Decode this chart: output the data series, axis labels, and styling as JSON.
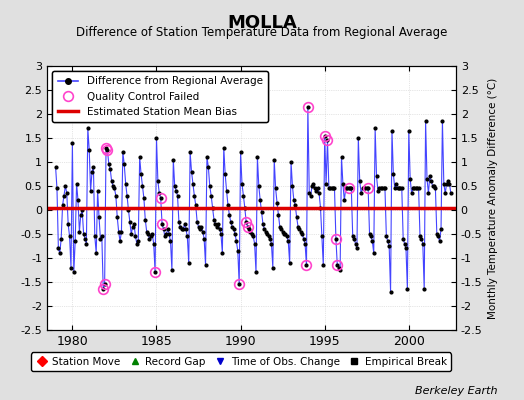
{
  "title": "MOLLA",
  "subtitle": "Difference of Station Temperature Data from Regional Average",
  "ylabel_right": "Monthly Temperature Anomaly Difference (°C)",
  "bias": 0.05,
  "ylim": [
    -2.5,
    3.0
  ],
  "xlim": [
    1978.5,
    2002.8
  ],
  "xticks": [
    1980,
    1985,
    1990,
    1995,
    2000
  ],
  "yticks": [
    -2.5,
    -2,
    -1.5,
    -1,
    -0.5,
    0,
    0.5,
    1,
    1.5,
    2,
    2.5,
    3
  ],
  "line_color": "#4444ff",
  "marker_color": "#000000",
  "bias_color": "#dd0000",
  "qc_color": "#ff44cc",
  "bg_fig": "#e0e0e0",
  "bg_ax": "#ffffff",
  "grid_color": "#cccccc",
  "watermark": "Berkeley Earth",
  "data": [
    [
      1979.0,
      0.9
    ],
    [
      1979.083,
      0.45
    ],
    [
      1979.167,
      -0.8
    ],
    [
      1979.25,
      -0.9
    ],
    [
      1979.333,
      -0.6
    ],
    [
      1979.417,
      0.1
    ],
    [
      1979.5,
      0.3
    ],
    [
      1979.583,
      0.5
    ],
    [
      1979.667,
      0.35
    ],
    [
      1979.75,
      -0.3
    ],
    [
      1979.833,
      -0.55
    ],
    [
      1979.917,
      -1.2
    ],
    [
      1980.0,
      1.4
    ],
    [
      1980.083,
      -1.3
    ],
    [
      1980.167,
      -0.65
    ],
    [
      1980.25,
      0.55
    ],
    [
      1980.333,
      0.2
    ],
    [
      1980.417,
      -0.45
    ],
    [
      1980.5,
      -0.1
    ],
    [
      1980.583,
      0.0
    ],
    [
      1980.667,
      -0.5
    ],
    [
      1980.75,
      -0.6
    ],
    [
      1980.833,
      -0.7
    ],
    [
      1980.917,
      1.7
    ],
    [
      1981.0,
      1.25
    ],
    [
      1981.083,
      0.4
    ],
    [
      1981.167,
      0.8
    ],
    [
      1981.25,
      0.9
    ],
    [
      1981.333,
      -0.55
    ],
    [
      1981.417,
      -0.9
    ],
    [
      1981.5,
      0.4
    ],
    [
      1981.583,
      -0.15
    ],
    [
      1981.667,
      -0.6
    ],
    [
      1981.75,
      -0.55
    ],
    [
      1981.833,
      -1.65
    ],
    [
      1981.917,
      -1.55
    ],
    [
      1982.0,
      1.3
    ],
    [
      1982.083,
      1.25
    ],
    [
      1982.167,
      0.95
    ],
    [
      1982.25,
      0.85
    ],
    [
      1982.333,
      0.6
    ],
    [
      1982.417,
      0.5
    ],
    [
      1982.5,
      0.45
    ],
    [
      1982.583,
      0.3
    ],
    [
      1982.667,
      -0.15
    ],
    [
      1982.75,
      -0.45
    ],
    [
      1982.833,
      -0.65
    ],
    [
      1982.917,
      -0.45
    ],
    [
      1983.0,
      1.2
    ],
    [
      1983.083,
      0.95
    ],
    [
      1983.167,
      0.55
    ],
    [
      1983.25,
      0.3
    ],
    [
      1983.333,
      0.0
    ],
    [
      1983.417,
      -0.25
    ],
    [
      1983.5,
      -0.5
    ],
    [
      1983.583,
      -0.35
    ],
    [
      1983.667,
      -0.3
    ],
    [
      1983.75,
      -0.55
    ],
    [
      1983.833,
      -0.7
    ],
    [
      1983.917,
      -0.65
    ],
    [
      1984.0,
      1.1
    ],
    [
      1984.083,
      0.75
    ],
    [
      1984.167,
      0.5
    ],
    [
      1984.25,
      0.25
    ],
    [
      1984.333,
      -0.2
    ],
    [
      1984.417,
      -0.45
    ],
    [
      1984.5,
      -0.5
    ],
    [
      1984.583,
      -0.6
    ],
    [
      1984.667,
      -0.55
    ],
    [
      1984.75,
      -0.5
    ],
    [
      1984.833,
      -0.7
    ],
    [
      1984.917,
      -1.3
    ],
    [
      1985.0,
      1.5
    ],
    [
      1985.083,
      0.6
    ],
    [
      1985.167,
      0.35
    ],
    [
      1985.25,
      0.25
    ],
    [
      1985.333,
      -0.3
    ],
    [
      1985.417,
      -0.4
    ],
    [
      1985.5,
      -0.55
    ],
    [
      1985.583,
      -0.5
    ],
    [
      1985.667,
      -0.4
    ],
    [
      1985.75,
      -0.5
    ],
    [
      1985.833,
      -0.65
    ],
    [
      1985.917,
      -1.25
    ],
    [
      1986.0,
      1.05
    ],
    [
      1986.083,
      0.5
    ],
    [
      1986.167,
      0.4
    ],
    [
      1986.25,
      0.3
    ],
    [
      1986.333,
      -0.25
    ],
    [
      1986.417,
      -0.35
    ],
    [
      1986.5,
      -0.4
    ],
    [
      1986.583,
      -0.4
    ],
    [
      1986.667,
      -0.3
    ],
    [
      1986.75,
      -0.4
    ],
    [
      1986.833,
      -0.55
    ],
    [
      1986.917,
      -1.1
    ],
    [
      1987.0,
      1.2
    ],
    [
      1987.083,
      0.8
    ],
    [
      1987.167,
      0.55
    ],
    [
      1987.25,
      0.3
    ],
    [
      1987.333,
      0.1
    ],
    [
      1987.417,
      -0.25
    ],
    [
      1987.5,
      -0.35
    ],
    [
      1987.583,
      -0.4
    ],
    [
      1987.667,
      -0.35
    ],
    [
      1987.75,
      -0.45
    ],
    [
      1987.833,
      -0.6
    ],
    [
      1987.917,
      -1.15
    ],
    [
      1988.0,
      1.1
    ],
    [
      1988.083,
      0.9
    ],
    [
      1988.167,
      0.5
    ],
    [
      1988.25,
      0.3
    ],
    [
      1988.333,
      0.05
    ],
    [
      1988.417,
      -0.2
    ],
    [
      1988.5,
      -0.3
    ],
    [
      1988.583,
      -0.35
    ],
    [
      1988.667,
      -0.3
    ],
    [
      1988.75,
      -0.4
    ],
    [
      1988.833,
      -0.5
    ],
    [
      1988.917,
      -0.9
    ],
    [
      1989.0,
      1.3
    ],
    [
      1989.083,
      0.75
    ],
    [
      1989.167,
      0.4
    ],
    [
      1989.25,
      0.1
    ],
    [
      1989.333,
      -0.1
    ],
    [
      1989.417,
      -0.25
    ],
    [
      1989.5,
      -0.35
    ],
    [
      1989.583,
      -0.4
    ],
    [
      1989.667,
      -0.5
    ],
    [
      1989.75,
      -0.65
    ],
    [
      1989.833,
      -0.85
    ],
    [
      1989.917,
      -1.55
    ],
    [
      1990.0,
      1.2
    ],
    [
      1990.083,
      0.55
    ],
    [
      1990.167,
      0.3
    ],
    [
      1990.25,
      0.05
    ],
    [
      1990.333,
      -0.25
    ],
    [
      1990.417,
      -0.35
    ],
    [
      1990.5,
      -0.4
    ],
    [
      1990.583,
      -0.45
    ],
    [
      1990.667,
      -0.5
    ],
    [
      1990.75,
      -0.55
    ],
    [
      1990.833,
      -0.7
    ],
    [
      1990.917,
      -1.3
    ],
    [
      1991.0,
      1.1
    ],
    [
      1991.083,
      0.5
    ],
    [
      1991.167,
      0.2
    ],
    [
      1991.25,
      -0.05
    ],
    [
      1991.333,
      -0.3
    ],
    [
      1991.417,
      -0.4
    ],
    [
      1991.5,
      -0.45
    ],
    [
      1991.583,
      -0.5
    ],
    [
      1991.667,
      -0.55
    ],
    [
      1991.75,
      -0.6
    ],
    [
      1991.833,
      -0.7
    ],
    [
      1991.917,
      -1.2
    ],
    [
      1992.0,
      1.05
    ],
    [
      1992.083,
      0.45
    ],
    [
      1992.167,
      0.15
    ],
    [
      1992.25,
      -0.1
    ],
    [
      1992.333,
      -0.35
    ],
    [
      1992.417,
      -0.4
    ],
    [
      1992.5,
      -0.45
    ],
    [
      1992.583,
      -0.5
    ],
    [
      1992.667,
      -0.5
    ],
    [
      1992.75,
      -0.55
    ],
    [
      1992.833,
      -0.65
    ],
    [
      1992.917,
      -1.1
    ],
    [
      1993.0,
      1.0
    ],
    [
      1993.083,
      0.5
    ],
    [
      1993.167,
      0.2
    ],
    [
      1993.25,
      0.1
    ],
    [
      1993.333,
      -0.15
    ],
    [
      1993.417,
      -0.35
    ],
    [
      1993.5,
      -0.4
    ],
    [
      1993.583,
      -0.45
    ],
    [
      1993.667,
      -0.5
    ],
    [
      1993.75,
      -0.6
    ],
    [
      1993.833,
      -0.7
    ],
    [
      1993.917,
      -1.15
    ],
    [
      1994.0,
      2.15
    ],
    [
      1994.083,
      0.35
    ],
    [
      1994.167,
      0.3
    ],
    [
      1994.25,
      0.5
    ],
    [
      1994.333,
      0.55
    ],
    [
      1994.417,
      0.45
    ],
    [
      1994.5,
      0.4
    ],
    [
      1994.583,
      0.45
    ],
    [
      1994.667,
      0.35
    ],
    [
      1994.75,
      0.05
    ],
    [
      1994.833,
      -0.55
    ],
    [
      1994.917,
      -1.15
    ],
    [
      1995.0,
      1.55
    ],
    [
      1995.083,
      0.55
    ],
    [
      1995.167,
      1.45
    ],
    [
      1995.25,
      0.45
    ],
    [
      1995.333,
      0.45
    ],
    [
      1995.417,
      0.45
    ],
    [
      1995.5,
      0.45
    ],
    [
      1995.583,
      0.45
    ],
    [
      1995.667,
      -0.6
    ],
    [
      1995.75,
      -1.15
    ],
    [
      1995.833,
      -1.2
    ],
    [
      1995.917,
      -1.25
    ],
    [
      1996.0,
      1.1
    ],
    [
      1996.083,
      0.55
    ],
    [
      1996.167,
      0.2
    ],
    [
      1996.25,
      0.45
    ],
    [
      1996.333,
      0.45
    ],
    [
      1996.417,
      0.45
    ],
    [
      1996.5,
      0.45
    ],
    [
      1996.583,
      0.45
    ],
    [
      1996.667,
      -0.55
    ],
    [
      1996.75,
      -0.6
    ],
    [
      1996.833,
      -0.7
    ],
    [
      1996.917,
      -0.8
    ],
    [
      1997.0,
      1.5
    ],
    [
      1997.083,
      0.6
    ],
    [
      1997.167,
      0.35
    ],
    [
      1997.25,
      0.45
    ],
    [
      1997.333,
      0.45
    ],
    [
      1997.417,
      0.45
    ],
    [
      1997.5,
      0.45
    ],
    [
      1997.583,
      0.45
    ],
    [
      1997.667,
      -0.5
    ],
    [
      1997.75,
      -0.55
    ],
    [
      1997.833,
      -0.65
    ],
    [
      1997.917,
      -0.9
    ],
    [
      1998.0,
      1.7
    ],
    [
      1998.083,
      0.7
    ],
    [
      1998.167,
      0.4
    ],
    [
      1998.25,
      0.45
    ],
    [
      1998.333,
      0.45
    ],
    [
      1998.417,
      0.45
    ],
    [
      1998.5,
      0.45
    ],
    [
      1998.583,
      0.45
    ],
    [
      1998.667,
      -0.55
    ],
    [
      1998.75,
      -0.65
    ],
    [
      1998.833,
      -0.75
    ],
    [
      1998.917,
      -1.7
    ],
    [
      1999.0,
      1.65
    ],
    [
      1999.083,
      0.75
    ],
    [
      1999.167,
      0.45
    ],
    [
      1999.25,
      0.55
    ],
    [
      1999.333,
      0.45
    ],
    [
      1999.417,
      0.45
    ],
    [
      1999.5,
      0.45
    ],
    [
      1999.583,
      0.45
    ],
    [
      1999.667,
      -0.6
    ],
    [
      1999.75,
      -0.7
    ],
    [
      1999.833,
      -0.8
    ],
    [
      1999.917,
      -1.65
    ],
    [
      2000.0,
      1.65
    ],
    [
      2000.083,
      0.65
    ],
    [
      2000.167,
      0.35
    ],
    [
      2000.25,
      0.45
    ],
    [
      2000.333,
      0.45
    ],
    [
      2000.417,
      0.45
    ],
    [
      2000.5,
      0.45
    ],
    [
      2000.583,
      0.45
    ],
    [
      2000.667,
      -0.55
    ],
    [
      2000.75,
      -0.6
    ],
    [
      2000.833,
      -0.7
    ],
    [
      2000.917,
      -1.65
    ],
    [
      2001.0,
      1.85
    ],
    [
      2001.083,
      0.65
    ],
    [
      2001.167,
      0.35
    ],
    [
      2001.25,
      0.7
    ],
    [
      2001.333,
      0.6
    ],
    [
      2001.417,
      0.5
    ],
    [
      2001.5,
      0.5
    ],
    [
      2001.583,
      0.45
    ],
    [
      2001.667,
      -0.5
    ],
    [
      2001.75,
      -0.55
    ],
    [
      2001.833,
      -0.65
    ],
    [
      2001.917,
      -0.4
    ],
    [
      2002.0,
      1.85
    ],
    [
      2002.083,
      0.55
    ],
    [
      2002.167,
      0.35
    ],
    [
      2002.25,
      0.55
    ],
    [
      2002.333,
      0.6
    ],
    [
      2002.417,
      0.55
    ],
    [
      2002.5,
      0.35
    ]
  ],
  "qc_failed": [
    [
      1981.833,
      -1.65
    ],
    [
      1981.917,
      -1.55
    ],
    [
      1982.0,
      1.3
    ],
    [
      1982.083,
      1.25
    ],
    [
      1984.917,
      -1.3
    ],
    [
      1985.25,
      0.25
    ],
    [
      1985.333,
      -0.3
    ],
    [
      1989.917,
      -1.55
    ],
    [
      1990.333,
      -0.25
    ],
    [
      1990.417,
      -0.35
    ],
    [
      1993.917,
      -1.15
    ],
    [
      1994.0,
      2.15
    ],
    [
      1995.0,
      1.55
    ],
    [
      1995.167,
      1.45
    ],
    [
      1995.667,
      -0.6
    ],
    [
      1995.75,
      -1.15
    ],
    [
      1996.417,
      0.45
    ],
    [
      1997.583,
      0.45
    ]
  ]
}
